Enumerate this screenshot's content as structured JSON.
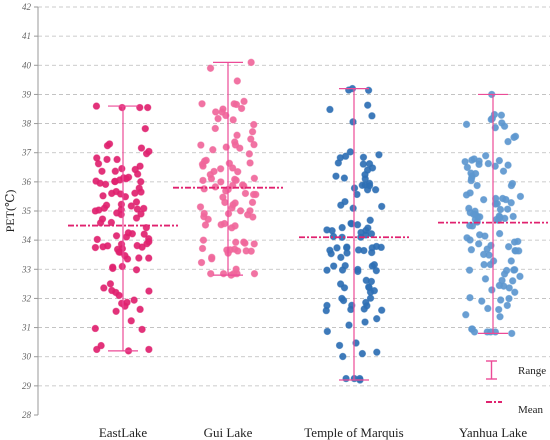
{
  "chart_data": {
    "type": "scatter",
    "ylabel": "PET(℃)",
    "ylim": [
      28,
      42
    ],
    "yticks": [
      "28",
      "29",
      "30",
      "31",
      "32",
      "33",
      "34",
      "35",
      "36",
      "37",
      "38",
      "39",
      "40",
      "41",
      "42"
    ],
    "categories": [
      "EastLake",
      "Gui Lake",
      "Temple of Marquis",
      "Yanhua Lake"
    ],
    "grid": true,
    "legend": {
      "position": "bottom-right",
      "range_label": "Range",
      "mean_label": "Mean"
    },
    "colors": {
      "EastLake": "#e0226f",
      "Gui Lake": "#f0679b",
      "Temple of Marquis": "#2e6fb4",
      "Yanhua Lake": "#5d97cf",
      "range_line": "#ec4b97",
      "grid": "#bbbbbb"
    },
    "series": [
      {
        "category": "EastLake",
        "min": 30.2,
        "max": 38.6,
        "mean": 34.5,
        "n": 100
      },
      {
        "category": "Gui Lake",
        "min": 32.8,
        "max": 40.1,
        "mean": 35.8,
        "n": 95
      },
      {
        "category": "Temple of Marquis",
        "min": 29.2,
        "max": 39.2,
        "mean": 34.1,
        "n": 100
      },
      {
        "category": "Yanhua Lake",
        "min": 30.8,
        "max": 39.0,
        "mean": 34.6,
        "n": 110
      }
    ]
  }
}
